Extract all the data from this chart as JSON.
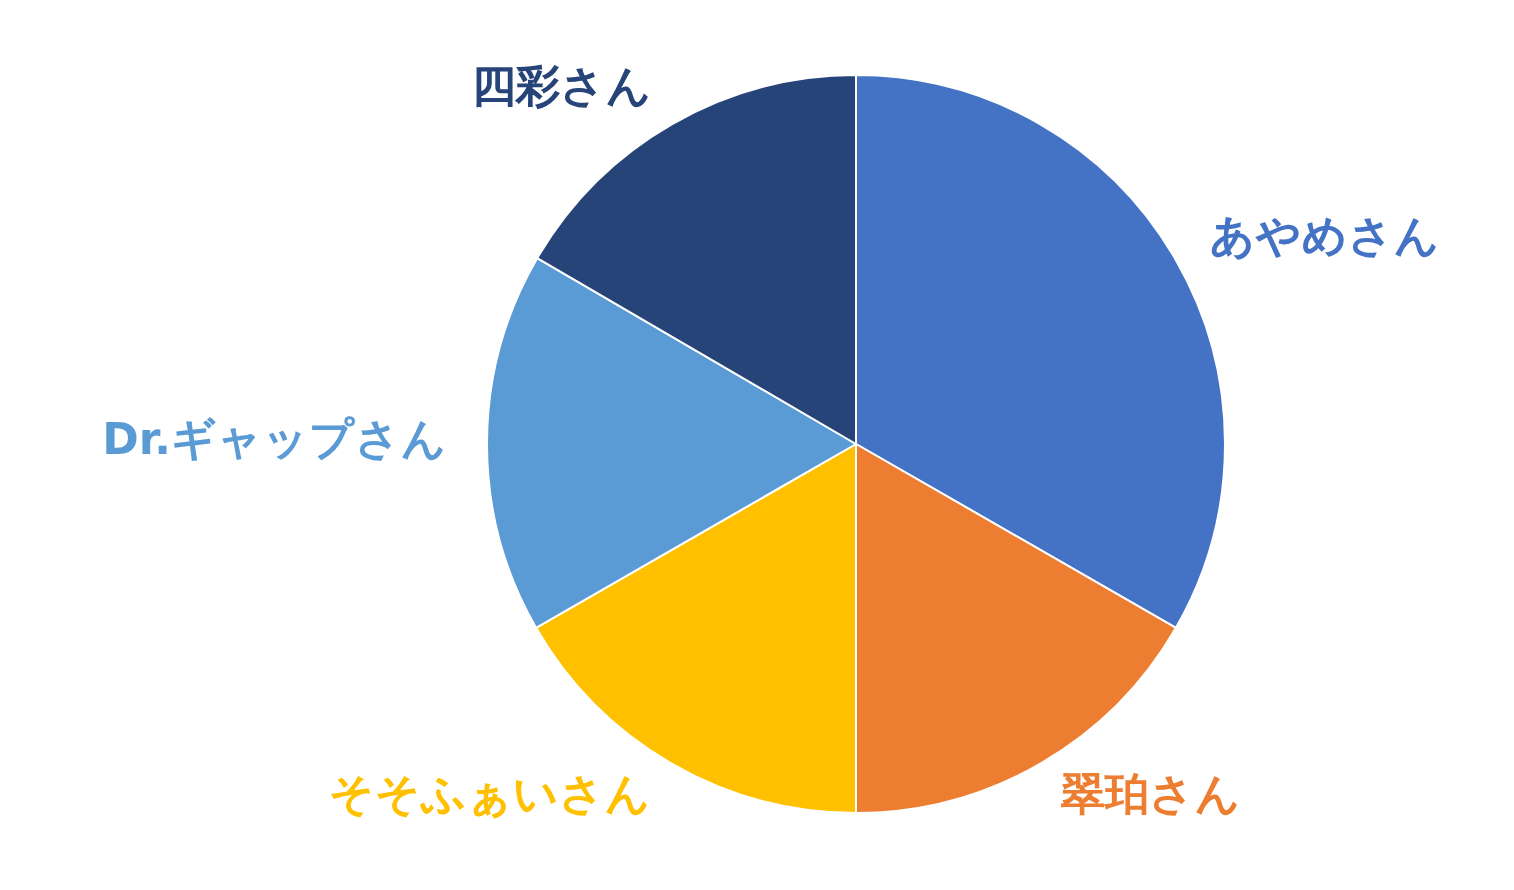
{
  "chart_data": {
    "type": "pie",
    "categories": [
      "あやめさん",
      "翠珀さん",
      "そそふぁいさん",
      "Dr.ギャップさん",
      "四彩さん"
    ],
    "values": [
      33.3,
      16.7,
      16.7,
      16.7,
      16.6
    ],
    "colors": [
      "#4472c4",
      "#ed7d31",
      "#ffc000",
      "#5b9bd5",
      "#264478"
    ],
    "legend": false
  }
}
